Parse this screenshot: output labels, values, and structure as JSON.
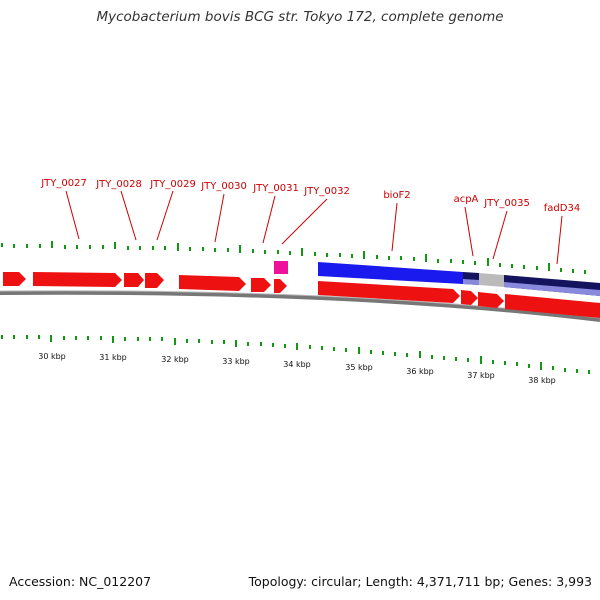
{
  "title": "Mycobacterium bovis BCG str. Tokyo 172, complete genome",
  "accession": "Accession: NC_012207",
  "summary": "Topology: circular; Length: 4,371,711 bp; Genes: 3,993",
  "colors": {
    "gene_red": "#ee1111",
    "gene_blue": "#1a1aee",
    "gene_navy": "#13135e",
    "gene_lightblue": "#8888dd",
    "gene_gray": "#bbbbbb",
    "gene_pink": "#ee1199",
    "label_red": "#cc0000",
    "tick_green": "#119911",
    "backbone_gray": "#777777"
  },
  "gene_labels": [
    "JTY_0027",
    "JTY_0028",
    "JTY_0029",
    "JTY_0030",
    "JTY_0031",
    "JTY_0032",
    "bioF2",
    "acpA",
    "JTY_0035",
    "fadD34"
  ],
  "kbp_labels": [
    "30 kbp",
    "31 kbp",
    "32 kbp",
    "33 kbp",
    "34 kbp",
    "35 kbp",
    "36 kbp",
    "37 kbp",
    "38 kbp"
  ]
}
